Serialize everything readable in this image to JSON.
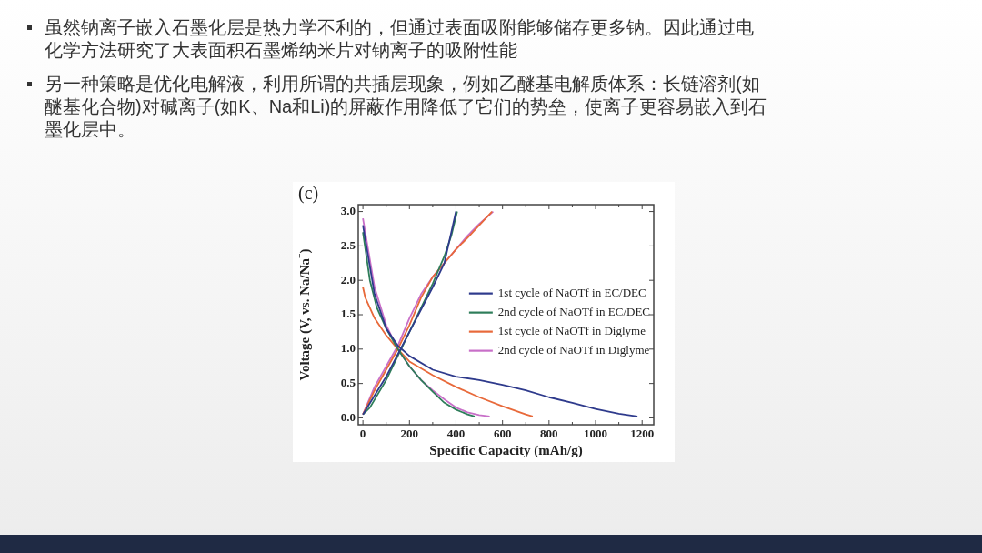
{
  "chart_data": {
    "type": "line",
    "xlabel": "Specific Capacity (mAh/g)",
    "ylabel": "Voltage (V, vs. Na/Na$^{+}$)",
    "annotations": [
      "(c)",
      "虽然钠离子嵌入石墨化层是热力学不利的，但通过表面吸附能够储存更多钠。因此通过电化学方法研究了大表面积石墨烯纳米片对钠离子的吸附性能",
      "另一种策略是优化电解液，利用所谓的共插层现象，例如乙醚基电解质体系：长链溶剂(如醚基化合物)对碱离子(如K、Na和Li)的屏蔽作用降低了它们的势垒，使离子更容易嵌入到石墨化层中。"
    ],
    "xlim": [
      -20,
      1250
    ],
    "xticks": [
      0,
      {
        "value": 100,
        "label": null
      },
      200,
      {
        "value": 300,
        "label": null
      },
      400,
      {
        "value": 500,
        "label": null
      },
      600,
      {
        "value": 700,
        "label": null
      },
      800,
      {
        "value": 900,
        "label": null
      },
      1000,
      {
        "value": 1100,
        "label": null
      },
      1200
    ],
    "ylim": [
      -0.1,
      3.1
    ],
    "yticks": [
      {
        "value": 0,
        "label": "0.0"
      },
      0.5,
      {
        "value": 1,
        "label": "1.0"
      },
      1.5,
      {
        "value": 2,
        "label": "2.0"
      },
      2.5,
      {
        "value": 3,
        "label": "3.0"
      }
    ],
    "grid": false,
    "legend": "right",
    "marker": "none",
    "line_style": "solid",
    "series": [
      {
        "name": "1st cycle of NaOTf in EC/DEC",
        "color": "#2e3a8c",
        "x": [
          0,
          50,
          100,
          150,
          200,
          300,
          400,
          500,
          600,
          700,
          800,
          900,
          1000,
          1100,
          1180
        ],
        "values": [
          2.8,
          1.8,
          1.3,
          1.05,
          0.9,
          0.7,
          0.6,
          0.55,
          0.48,
          0.4,
          0.3,
          0.22,
          0.13,
          0.06,
          0.02
        ]
      },
      {
        "color": "#2e3a8c",
        "x": [
          0,
          100,
          200,
          300,
          350,
          400
        ],
        "values": [
          0.05,
          0.6,
          1.25,
          1.9,
          2.25,
          3.0
        ]
      },
      {
        "name": "2nd cycle of NaOTf in EC/DEC",
        "color": "#2e7d5a",
        "x": [
          0,
          30,
          60,
          100,
          150,
          200,
          250,
          300,
          350,
          400,
          450,
          480
        ],
        "values": [
          2.7,
          2.0,
          1.6,
          1.3,
          1.0,
          0.75,
          0.55,
          0.38,
          0.22,
          0.12,
          0.05,
          0.02
        ]
      },
      {
        "color": "#2e7d5a",
        "x": [
          0,
          30,
          100,
          150,
          200,
          250,
          300,
          350,
          380,
          405
        ],
        "values": [
          0.05,
          0.15,
          0.55,
          0.9,
          1.25,
          1.6,
          1.95,
          2.35,
          2.65,
          3.0
        ]
      },
      {
        "name": "1st cycle of NaOTf in Diglyme",
        "color": "#e8693a",
        "x": [
          0,
          10,
          50,
          100,
          150,
          200,
          300,
          400,
          500,
          600,
          700,
          730
        ],
        "values": [
          1.9,
          1.75,
          1.45,
          1.2,
          1.0,
          0.82,
          0.62,
          0.45,
          0.3,
          0.17,
          0.05,
          0.02
        ]
      },
      {
        "color": "#e8693a",
        "x": [
          0,
          50,
          100,
          150,
          200,
          250,
          300,
          350,
          400,
          450,
          500,
          555
        ],
        "values": [
          0.05,
          0.4,
          0.7,
          1.0,
          1.35,
          1.75,
          2.05,
          2.25,
          2.45,
          2.62,
          2.8,
          3.0
        ]
      },
      {
        "name": "2nd cycle of NaOTf in Diglyme",
        "color": "#c86fc8",
        "x": [
          0,
          20,
          50,
          100,
          150,
          200,
          250,
          300,
          350,
          400,
          450,
          500,
          545
        ],
        "values": [
          2.9,
          2.5,
          1.9,
          1.35,
          1.0,
          0.75,
          0.55,
          0.4,
          0.27,
          0.15,
          0.08,
          0.04,
          0.02
        ]
      },
      {
        "color": "#c86fc8",
        "x": [
          0,
          50,
          100,
          150,
          200,
          250,
          300,
          350,
          400,
          450,
          500,
          560
        ],
        "values": [
          0.05,
          0.45,
          0.75,
          1.05,
          1.45,
          1.8,
          2.05,
          2.25,
          2.45,
          2.65,
          2.82,
          3.0
        ]
      }
    ]
  }
}
